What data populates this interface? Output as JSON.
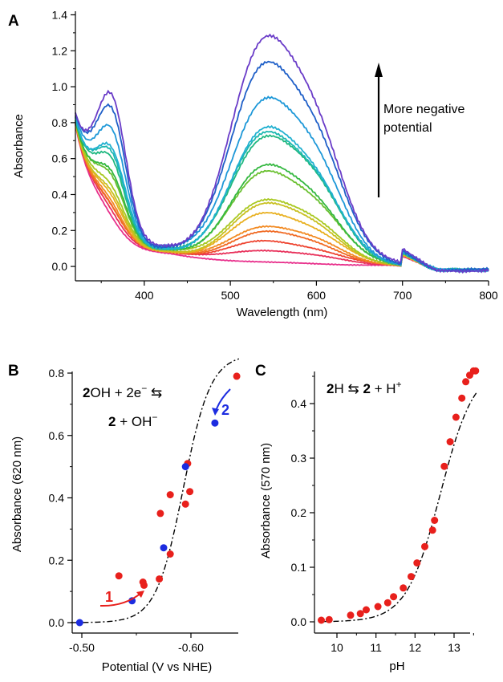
{
  "chart_data": [
    {
      "panel": "A",
      "type": "line",
      "xlabel": "Wavelength (nm)",
      "ylabel": "Absorbance",
      "xlim": [
        320,
        800
      ],
      "ylim": [
        -0.08,
        1.42
      ],
      "xticks": [
        400,
        500,
        600,
        700,
        800
      ],
      "yticks": [
        0.0,
        0.2,
        0.4,
        0.6,
        0.8,
        1.0,
        1.2,
        1.4
      ],
      "annotation": [
        "More negative",
        "potential"
      ],
      "annotation_arrow": "up",
      "grid": false,
      "spectrum_shape": {
        "start_x": 320,
        "start_y": 0.76,
        "uv_band_center": 365,
        "uv_band_width": 22,
        "min_x": 420,
        "vis_band_center": 570,
        "vis_band_width": 62,
        "tail_end_y": -0.02
      },
      "series": [
        {
          "color": "#e8308c",
          "peak_570": 0.0,
          "uv_peak": 0.0,
          "min_y": 0.06
        },
        {
          "color": "#e8305a",
          "peak_570": 0.06,
          "uv_peak": 0.01,
          "min_y": 0.07
        },
        {
          "color": "#ee4430",
          "peak_570": 0.11,
          "uv_peak": 0.02,
          "min_y": 0.07
        },
        {
          "color": "#f06a24",
          "peak_570": 0.16,
          "uv_peak": 0.02,
          "min_y": 0.07
        },
        {
          "color": "#f28a22",
          "peak_570": 0.19,
          "uv_peak": 0.03,
          "min_y": 0.07
        },
        {
          "color": "#e8b020",
          "peak_570": 0.26,
          "uv_peak": 0.04,
          "min_y": 0.07
        },
        {
          "color": "#c8c020",
          "peak_570": 0.31,
          "uv_peak": 0.05,
          "min_y": 0.07
        },
        {
          "color": "#a8c820",
          "peak_570": 0.33,
          "uv_peak": 0.06,
          "min_y": 0.08
        },
        {
          "color": "#6ac030",
          "peak_570": 0.48,
          "uv_peak": 0.08,
          "min_y": 0.08
        },
        {
          "color": "#34b840",
          "peak_570": 0.51,
          "uv_peak": 0.09,
          "min_y": 0.08
        },
        {
          "color": "#20b880",
          "peak_570": 0.67,
          "uv_peak": 0.12,
          "min_y": 0.08
        },
        {
          "color": "#1cb8b0",
          "peak_570": 0.69,
          "uv_peak": 0.13,
          "min_y": 0.08
        },
        {
          "color": "#20b0d0",
          "peak_570": 0.71,
          "uv_peak": 0.14,
          "min_y": 0.08
        },
        {
          "color": "#1e98d8",
          "peak_570": 0.87,
          "uv_peak": 0.18,
          "min_y": 0.09
        },
        {
          "color": "#2060c8",
          "peak_570": 1.06,
          "uv_peak": 0.22,
          "min_y": 0.09
        },
        {
          "color": "#6a3cc8",
          "peak_570": 1.19,
          "uv_peak": 0.25,
          "min_y": 0.09
        }
      ]
    },
    {
      "panel": "B",
      "type": "scatter",
      "xlabel": "Potential (V vs NHE)",
      "ylabel": "Absorbance (620 nm)",
      "xlim": [
        -0.505,
        -0.545
      ],
      "ylim": [
        -0.02,
        0.82
      ],
      "xticks": [
        -0.5,
        -0.6
      ],
      "xticklabels": [
        "-0.50",
        "-0.60"
      ],
      "yticks": [
        0.0,
        0.2,
        0.4,
        0.6,
        0.8
      ],
      "equation_line1": {
        "a": "2",
        "b": "OH + 2e",
        "sup": "−",
        "c": " ⇆"
      },
      "equation_line2": {
        "a": "2",
        "b": " + OH",
        "sup": "−"
      },
      "sweep_labels": [
        "1",
        "2"
      ],
      "series": [
        {
          "name": "1",
          "color": "#e8201c",
          "x": [
            -0.534,
            -0.556,
            -0.581,
            -0.595,
            -0.599,
            -0.597,
            -0.581,
            -0.572,
            -0.571,
            -0.557,
            -0.642
          ],
          "y": [
            0.15,
            0.13,
            0.22,
            0.38,
            0.42,
            0.51,
            0.41,
            0.35,
            0.14,
            0.12,
            0.79
          ]
        },
        {
          "name": "2",
          "color": "#1c2ce0",
          "x": [
            -0.498,
            -0.546,
            -0.575,
            -0.595,
            -0.622
          ],
          "y": [
            0.0,
            0.07,
            0.24,
            0.5,
            0.64
          ]
        }
      ],
      "fit_style": "dash-dot"
    },
    {
      "panel": "C",
      "type": "scatter",
      "xlabel": "pH",
      "ylabel": "Absorbance (570 nm)",
      "xlim": [
        9.5,
        13.7
      ],
      "ylim": [
        -0.01,
        0.47
      ],
      "xticks": [
        10,
        11,
        12,
        13
      ],
      "yticks": [
        0.0,
        0.1,
        0.2,
        0.3,
        0.4
      ],
      "equation": {
        "a": "2",
        "b": "H ⇆ ",
        "c": "2",
        "d": " + H",
        "sup": "+"
      },
      "series": [
        {
          "color": "#e8201c",
          "x": [
            9.6,
            9.8,
            10.35,
            10.6,
            10.75,
            11.05,
            11.3,
            11.45,
            11.7,
            11.9,
            12.05,
            12.25,
            12.45,
            12.5,
            12.75,
            12.9,
            13.05,
            13.2,
            13.3,
            13.4,
            13.5,
            13.55
          ],
          "y": [
            0.003,
            0.004,
            0.012,
            0.015,
            0.022,
            0.028,
            0.035,
            0.046,
            0.062,
            0.083,
            0.108,
            0.138,
            0.168,
            0.186,
            0.285,
            0.33,
            0.375,
            0.41,
            0.44,
            0.452,
            0.46,
            0.46
          ]
        }
      ],
      "fit": {
        "pKa": 12.65,
        "max": 0.47
      },
      "fit_style": "dash-dot"
    }
  ]
}
